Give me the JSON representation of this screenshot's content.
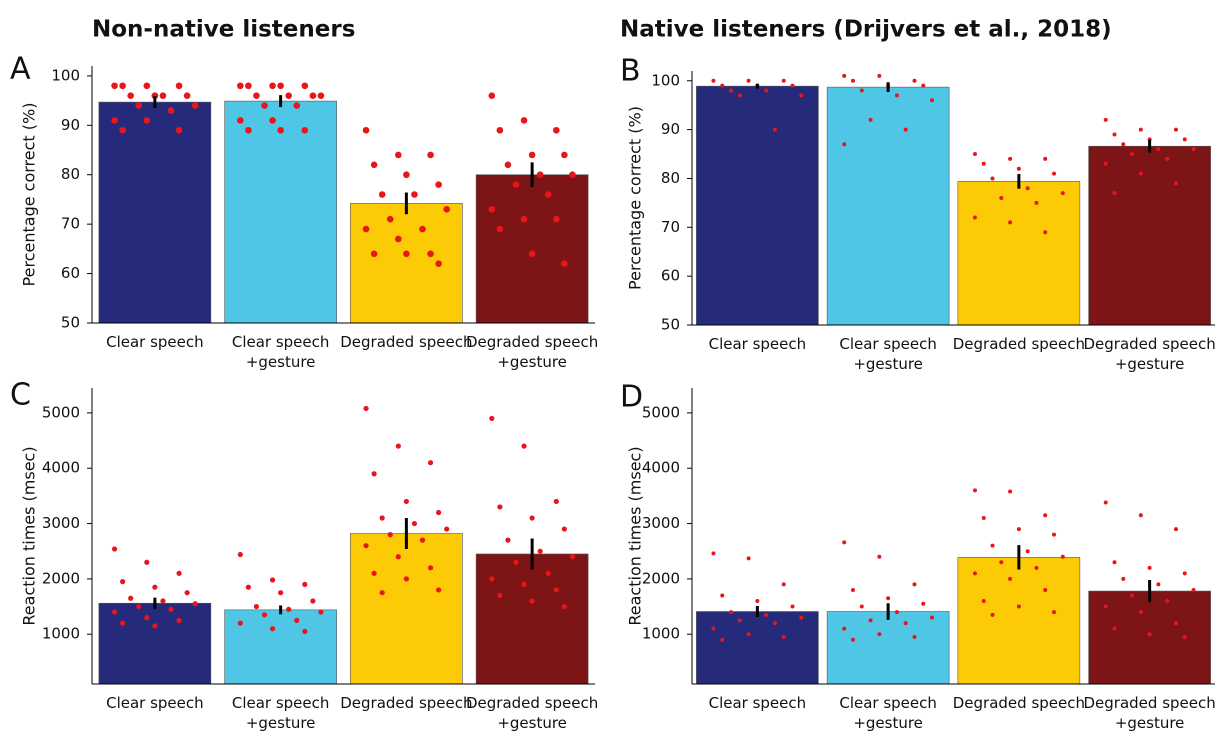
{
  "chart_data": [
    {
      "type": "bar",
      "panel_label": "A",
      "title": "Non-native listeners",
      "ylabel": "Percentage correct (%)",
      "categories": [
        [
          "Clear speech"
        ],
        [
          "Clear speech",
          "+gesture"
        ],
        [
          "Degraded speech"
        ],
        [
          "Degraded speech",
          "+gesture"
        ]
      ],
      "colors": [
        "#252a7b",
        "#4fc6e6",
        "#fdcb05",
        "#7d1416"
      ],
      "values": [
        94.7,
        94.9,
        74.2,
        80.0
      ],
      "errors": [
        1.2,
        1.2,
        2.2,
        2.5
      ],
      "points": [
        [
          98,
          98,
          98,
          98,
          96,
          96,
          96,
          96,
          94,
          94,
          93,
          91,
          91,
          89,
          89,
          96
        ],
        [
          98,
          98,
          98,
          98,
          98,
          96,
          96,
          96,
          96,
          94,
          94,
          91,
          91,
          89,
          89,
          89
        ],
        [
          89,
          84,
          84,
          82,
          80,
          78,
          76,
          76,
          73,
          71,
          69,
          69,
          67,
          64,
          64,
          64,
          62
        ],
        [
          96,
          91,
          89,
          89,
          84,
          84,
          82,
          80,
          80,
          78,
          76,
          73,
          71,
          71,
          69,
          64,
          62
        ]
      ],
      "point_color": "#e8161b",
      "ylim": [
        50,
        102
      ],
      "yticks": [
        50,
        60,
        70,
        80,
        90,
        100
      ]
    },
    {
      "type": "bar",
      "panel_label": "B",
      "title": "Native listeners (Drijvers et al., 2018)",
      "ylabel": "Percentage correct (%)",
      "categories": [
        [
          "Clear speech"
        ],
        [
          "Clear speech",
          "+gesture"
        ],
        [
          "Degraded speech"
        ],
        [
          "Degraded speech",
          "+gesture"
        ]
      ],
      "colors": [
        "#252a7b",
        "#4fc6e6",
        "#fdcb05",
        "#7d1416"
      ],
      "values": [
        98.9,
        98.7,
        79.4,
        86.6
      ],
      "errors": [
        0.5,
        1.0,
        1.5,
        1.3
      ],
      "points": [
        [
          100,
          100,
          100,
          99,
          99,
          99,
          98,
          98,
          97,
          97,
          90
        ],
        [
          101,
          101,
          100,
          100,
          99,
          99,
          98,
          97,
          96,
          92,
          90,
          87
        ],
        [
          85,
          84,
          84,
          83,
          82,
          81,
          80,
          78,
          77,
          76,
          75,
          72,
          71,
          69
        ],
        [
          92,
          90,
          90,
          89,
          88,
          88,
          87,
          86,
          86,
          85,
          84,
          83,
          81,
          79,
          77
        ]
      ],
      "point_color": "#e8161b",
      "ylim": [
        50,
        102
      ],
      "yticks": [
        50,
        60,
        70,
        80,
        90,
        100
      ]
    },
    {
      "type": "bar",
      "panel_label": "C",
      "ylabel": "Reaction times (msec)",
      "categories": [
        [
          "Clear speech"
        ],
        [
          "Clear speech",
          "+gesture"
        ],
        [
          "Degraded speech"
        ],
        [
          "Degraded speech",
          "+gesture"
        ]
      ],
      "colors": [
        "#252a7b",
        "#4fc6e6",
        "#fdcb05",
        "#7d1416"
      ],
      "values": [
        1560,
        1440,
        2820,
        2450
      ],
      "errors": [
        100,
        80,
        280,
        280
      ],
      "points": [
        [
          2540,
          2300,
          2100,
          1950,
          1850,
          1750,
          1650,
          1600,
          1550,
          1500,
          1450,
          1400,
          1300,
          1250,
          1200,
          1150
        ],
        [
          2440,
          1980,
          1900,
          1850,
          1750,
          1600,
          1500,
          1450,
          1400,
          1350,
          1250,
          1200,
          1100,
          1050
        ],
        [
          5080,
          4400,
          4100,
          3900,
          3400,
          3200,
          3100,
          3000,
          2900,
          2800,
          2700,
          2600,
          2400,
          2200,
          2100,
          2000,
          1800,
          1750
        ],
        [
          4900,
          4400,
          3400,
          3300,
          3100,
          2900,
          2700,
          2500,
          2400,
          2300,
          2100,
          2000,
          1900,
          1800,
          1700,
          1600,
          1500
        ]
      ],
      "point_color": "#e8161b",
      "ylim": [
        100,
        5450
      ],
      "yticks": [
        1000,
        2000,
        3000,
        4000,
        5000
      ]
    },
    {
      "type": "bar",
      "panel_label": "D",
      "ylabel": "Reaction times (msec)",
      "categories": [
        [
          "Clear speech"
        ],
        [
          "Clear speech",
          "+gesture"
        ],
        [
          "Degraded speech"
        ],
        [
          "Degraded speech",
          "+gesture"
        ]
      ],
      "colors": [
        "#252a7b",
        "#4fc6e6",
        "#fdcb05",
        "#7d1416"
      ],
      "values": [
        1410,
        1410,
        2390,
        1780
      ],
      "errors": [
        100,
        150,
        220,
        200
      ],
      "points": [
        [
          2460,
          2370,
          1900,
          1700,
          1600,
          1500,
          1400,
          1350,
          1300,
          1250,
          1200,
          1100,
          1000,
          950,
          900
        ],
        [
          2660,
          2400,
          1900,
          1800,
          1650,
          1550,
          1500,
          1400,
          1300,
          1250,
          1200,
          1100,
          1000,
          950,
          900
        ],
        [
          3600,
          3580,
          3150,
          3100,
          2900,
          2800,
          2600,
          2500,
          2400,
          2300,
          2200,
          2100,
          2000,
          1800,
          1600,
          1500,
          1400,
          1350
        ],
        [
          3380,
          3150,
          2900,
          2300,
          2200,
          2100,
          2000,
          1900,
          1800,
          1700,
          1600,
          1500,
          1400,
          1200,
          1100,
          1000,
          950
        ]
      ],
      "point_color": "#e8161b",
      "ylim": [
        100,
        5450
      ],
      "yticks": [
        1000,
        2000,
        3000,
        4000,
        5000
      ]
    }
  ]
}
